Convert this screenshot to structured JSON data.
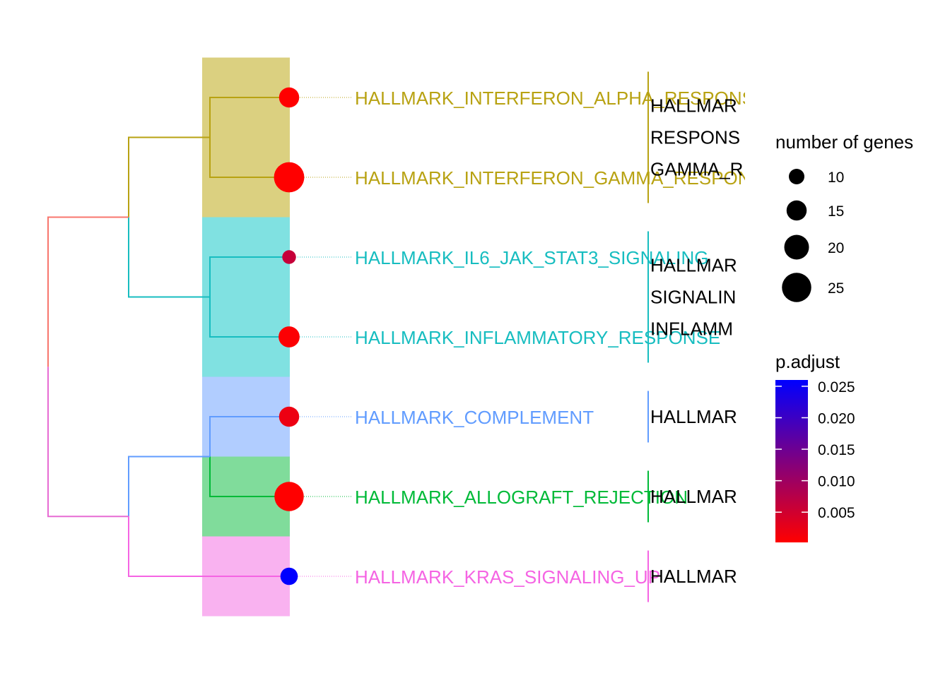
{
  "chart_data": {
    "type": "treeplot",
    "title": "",
    "terms": [
      {
        "name": "HALLMARK_INTERFERON_ALPHA_RESPONSE",
        "count": 15,
        "p_adjust": 0.0002,
        "cluster": 0
      },
      {
        "name": "HALLMARK_INTERFERON_GAMMA_RESPONSE",
        "count": 26,
        "p_adjust": 0.0002,
        "cluster": 0
      },
      {
        "name": "HALLMARK_IL6_JAK_STAT3_SIGNALING",
        "count": 8,
        "p_adjust": 0.006,
        "cluster": 1
      },
      {
        "name": "HALLMARK_INFLAMMATORY_RESPONSE",
        "count": 16,
        "p_adjust": 0.0005,
        "cluster": 1
      },
      {
        "name": "HALLMARK_COMPLEMENT",
        "count": 15,
        "p_adjust": 0.002,
        "cluster": 2
      },
      {
        "name": "HALLMARK_ALLOGRAFT_REJECTION",
        "count": 25,
        "p_adjust": 0.0002,
        "cluster": 3
      },
      {
        "name": "HALLMARK_KRAS_SIGNALING_UP",
        "count": 12,
        "p_adjust": 0.026,
        "cluster": 4
      }
    ],
    "clusters": [
      {
        "color": "#B8A212",
        "fill": "#DBD080",
        "label_lines": [
          "HALLMAR",
          "RESPONS",
          "GAMMA_R"
        ]
      },
      {
        "color": "#17BDC0",
        "fill": "#80E1E1",
        "label_lines": [
          "HALLMAR",
          "SIGNALIN",
          "INFLAMM"
        ]
      },
      {
        "color": "#619CFF",
        "fill": "#B1CDFF",
        "label_lines": [
          "HALLMAR"
        ]
      },
      {
        "color": "#00BA38",
        "fill": "#80DC9B",
        "label_lines": [
          "HALLMAR"
        ]
      },
      {
        "color": "#F564E3",
        "fill": "#F9B2F0",
        "label_lines": [
          "HALLMAR"
        ]
      }
    ],
    "tree_colors": {
      "root_top": "#F8766D",
      "root_bottom": "#E76BD3"
    },
    "legend_size": {
      "title": "number of genes",
      "breaks": [
        10,
        15,
        20,
        25
      ],
      "color": "#000000"
    },
    "legend_color": {
      "title": "p.adjust",
      "breaks": [
        0.005,
        0.01,
        0.015,
        0.02,
        0.025
      ],
      "tick_labels": [
        "0.005",
        "0.010",
        "0.015",
        "0.020",
        "0.025"
      ],
      "range": [
        0.0002,
        0.026
      ],
      "low_color": "#FF0000",
      "high_color": "#0000FF"
    }
  }
}
